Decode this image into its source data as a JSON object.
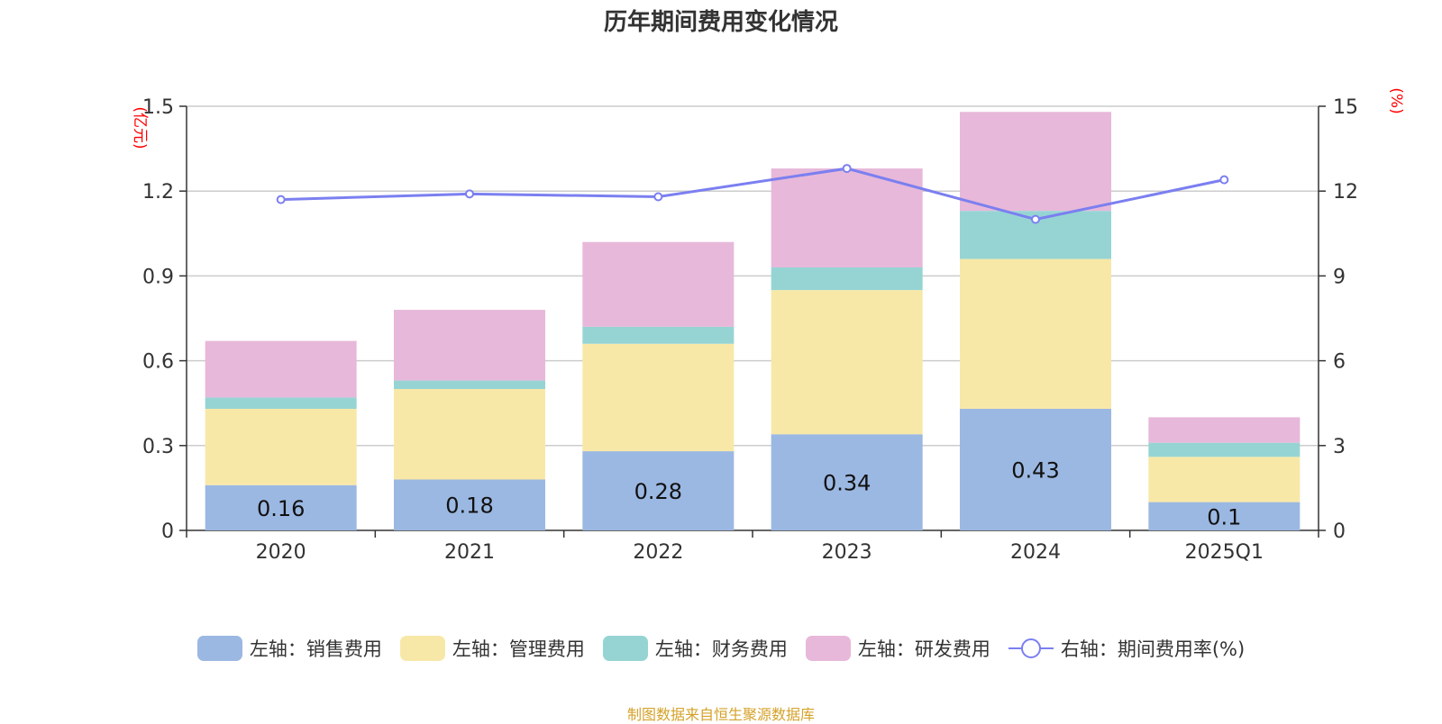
{
  "chart_data": {
    "type": "bar",
    "title": "历年期间费用变化情况",
    "categories": [
      "2020",
      "2021",
      "2022",
      "2023",
      "2024",
      "2025Q1"
    ],
    "left_axis": {
      "label": "(亿元)",
      "ylim": [
        0,
        1.5
      ],
      "ticks": [
        "0",
        "0.3",
        "0.6",
        "0.9",
        "1.2",
        "1.5"
      ],
      "label_color": "#ff0000"
    },
    "right_axis": {
      "label": "(%)",
      "ylim": [
        0,
        15
      ],
      "ticks": [
        "0",
        "3",
        "6",
        "9",
        "12",
        "15"
      ],
      "label_color": "#ff0000"
    },
    "stacked": true,
    "series": [
      {
        "name": "左轴：销售费用",
        "axis": "left",
        "color": "#9bb8e2",
        "values": [
          0.16,
          0.18,
          0.28,
          0.34,
          0.43,
          0.1
        ],
        "data_labels": [
          "0.16",
          "0.18",
          "0.28",
          "0.34",
          "0.43",
          "0.1"
        ]
      },
      {
        "name": "左轴：管理费用",
        "axis": "left",
        "color": "#f8e8a8",
        "values": [
          0.27,
          0.32,
          0.38,
          0.51,
          0.53,
          0.16
        ]
      },
      {
        "name": "左轴：财务费用",
        "axis": "left",
        "color": "#96d4d4",
        "values": [
          0.04,
          0.03,
          0.06,
          0.08,
          0.17,
          0.05
        ]
      },
      {
        "name": "左轴：研发费用",
        "axis": "left",
        "color": "#e7b8d9",
        "values": [
          0.2,
          0.25,
          0.3,
          0.35,
          0.35,
          0.09
        ]
      },
      {
        "name": "右轴：期间费用率(%)",
        "axis": "right",
        "type": "line",
        "color": "#7b7ff0",
        "values": [
          11.7,
          11.9,
          11.8,
          12.8,
          11.0,
          12.4
        ]
      }
    ],
    "grid": true,
    "legend_position": "bottom"
  },
  "source": "制图数据来自恒生聚源数据库"
}
